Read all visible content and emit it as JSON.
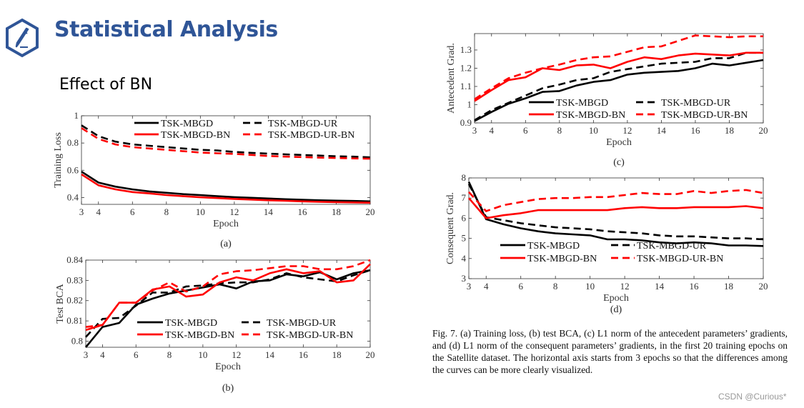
{
  "header": {
    "title": "Statistical Analysis",
    "subtitle": "Effect of BN",
    "icon": "pencil-hexagon-icon",
    "accent": "#2f5597"
  },
  "caption": "Fig. 7.  (a) Training loss, (b) test BCA, (c) L1 norm of the antecedent parameters’ gradients, and (d) L1 norm of the consequent parameters’ gradients, in the first 20 training epochs on the Satellite dataset. The horizontal axis starts from 3 epochs so that the differences among the curves can be more clearly visualized.",
  "watermark": "CSDN @Curious*",
  "chart_data": [
    {
      "type": "line",
      "panel": "(a)",
      "xlabel": "Epoch",
      "ylabel": "Training Loss",
      "xlim": [
        3,
        20
      ],
      "ylim": [
        0.35,
        1
      ],
      "xticks": [
        3,
        4,
        6,
        8,
        10,
        12,
        14,
        16,
        18,
        20
      ],
      "yticks": [
        0.4,
        0.6,
        0.8,
        1
      ],
      "ytick_labels": [
        "0.4",
        "0.6",
        "0.8",
        "1"
      ],
      "legend": "top",
      "x": [
        3,
        4,
        5,
        6,
        7,
        8,
        9,
        10,
        11,
        12,
        13,
        14,
        15,
        16,
        17,
        18,
        19,
        20
      ],
      "series": [
        {
          "name": "TSK-MBGD",
          "color": "#000000",
          "dash": false,
          "values": [
            0.59,
            0.51,
            0.48,
            0.46,
            0.445,
            0.435,
            0.425,
            0.418,
            0.41,
            0.403,
            0.398,
            0.393,
            0.388,
            0.384,
            0.38,
            0.377,
            0.375,
            0.372
          ]
        },
        {
          "name": "TSK-MBGD-UR",
          "color": "#000000",
          "dash": true,
          "values": [
            0.93,
            0.85,
            0.81,
            0.79,
            0.78,
            0.77,
            0.76,
            0.75,
            0.745,
            0.735,
            0.728,
            0.722,
            0.717,
            0.712,
            0.708,
            0.703,
            0.7,
            0.695
          ]
        },
        {
          "name": "TSK-MBGD-BN",
          "color": "#ff0000",
          "dash": false,
          "values": [
            0.57,
            0.49,
            0.46,
            0.44,
            0.43,
            0.418,
            0.41,
            0.402,
            0.396,
            0.39,
            0.385,
            0.38,
            0.376,
            0.372,
            0.369,
            0.366,
            0.364,
            0.362
          ]
        },
        {
          "name": "TSK-MBGD-UR-BN",
          "color": "#ff0000",
          "dash": true,
          "values": [
            0.91,
            0.83,
            0.79,
            0.77,
            0.76,
            0.75,
            0.74,
            0.73,
            0.725,
            0.72,
            0.713,
            0.705,
            0.7,
            0.697,
            0.693,
            0.69,
            0.687,
            0.685
          ]
        }
      ]
    },
    {
      "type": "line",
      "panel": "(b)",
      "xlabel": "Epoch",
      "ylabel": "Test BCA",
      "xlim": [
        3,
        20
      ],
      "ylim": [
        0.797,
        0.84
      ],
      "xticks": [
        3,
        4,
        6,
        8,
        10,
        12,
        14,
        16,
        18,
        20
      ],
      "yticks": [
        0.8,
        0.81,
        0.82,
        0.83,
        0.84
      ],
      "ytick_labels": [
        "0.8",
        "0.81",
        "0.82",
        "0.83",
        "0.84"
      ],
      "legend": "bottom",
      "x": [
        3,
        4,
        5,
        6,
        7,
        8,
        9,
        10,
        11,
        12,
        13,
        14,
        15,
        16,
        17,
        18,
        19,
        20
      ],
      "series": [
        {
          "name": "TSK-MBGD",
          "color": "#000000",
          "dash": false,
          "values": [
            0.797,
            0.807,
            0.809,
            0.818,
            0.821,
            0.8235,
            0.825,
            0.8265,
            0.828,
            0.826,
            0.8295,
            0.83,
            0.833,
            0.832,
            0.834,
            0.8305,
            0.8335,
            0.835
          ]
        },
        {
          "name": "TSK-MBGD-UR",
          "color": "#000000",
          "dash": true,
          "values": [
            0.802,
            0.811,
            0.8115,
            0.8175,
            0.824,
            0.824,
            0.827,
            0.8275,
            0.8285,
            0.829,
            0.829,
            0.8305,
            0.8335,
            0.8315,
            0.8305,
            0.8295,
            0.8325,
            0.835
          ]
        },
        {
          "name": "TSK-MBGD-BN",
          "color": "#ff0000",
          "dash": false,
          "values": [
            0.8055,
            0.808,
            0.819,
            0.819,
            0.8255,
            0.827,
            0.822,
            0.823,
            0.829,
            0.8315,
            0.83,
            0.8335,
            0.8355,
            0.8335,
            0.8345,
            0.829,
            0.83,
            0.838
          ]
        },
        {
          "name": "TSK-MBGD-UR-BN",
          "color": "#ff0000",
          "dash": true,
          "values": [
            0.807,
            0.808,
            0.819,
            0.819,
            0.825,
            0.829,
            0.8245,
            0.827,
            0.833,
            0.8345,
            0.835,
            0.836,
            0.837,
            0.837,
            0.8355,
            0.8355,
            0.837,
            0.84
          ]
        }
      ]
    },
    {
      "type": "line",
      "panel": "(c)",
      "xlabel": "Epoch",
      "ylabel": "Antecedent Grad.",
      "xlim": [
        3,
        20
      ],
      "ylim": [
        0.9,
        1.39
      ],
      "xticks": [
        3,
        4,
        6,
        8,
        10,
        12,
        14,
        16,
        18,
        20
      ],
      "yticks": [
        0.9,
        1,
        1.1,
        1.2,
        1.3
      ],
      "ytick_labels": [
        "0.9",
        "1",
        "1.1",
        "1.2",
        "1.3"
      ],
      "legend": "bottom",
      "x": [
        3,
        4,
        5,
        6,
        7,
        8,
        9,
        10,
        11,
        12,
        13,
        14,
        15,
        16,
        17,
        18,
        19,
        20
      ],
      "series": [
        {
          "name": "TSK-MBGD",
          "color": "#000000",
          "dash": false,
          "values": [
            0.91,
            0.96,
            1.005,
            1.035,
            1.07,
            1.075,
            1.105,
            1.125,
            1.135,
            1.165,
            1.175,
            1.18,
            1.185,
            1.2,
            1.225,
            1.215,
            1.23,
            1.245
          ]
        },
        {
          "name": "TSK-MBGD-UR",
          "color": "#000000",
          "dash": true,
          "values": [
            0.915,
            0.97,
            1.01,
            1.05,
            1.09,
            1.11,
            1.135,
            1.145,
            1.18,
            1.195,
            1.21,
            1.225,
            1.23,
            1.235,
            1.255,
            1.255,
            1.285,
            1.285
          ]
        },
        {
          "name": "TSK-MBGD-BN",
          "color": "#ff0000",
          "dash": false,
          "values": [
            1.02,
            1.08,
            1.135,
            1.15,
            1.2,
            1.19,
            1.215,
            1.22,
            1.2,
            1.235,
            1.26,
            1.25,
            1.27,
            1.28,
            1.275,
            1.27,
            1.285,
            1.285
          ]
        },
        {
          "name": "TSK-MBGD-UR-BN",
          "color": "#ff0000",
          "dash": true,
          "values": [
            1.03,
            1.09,
            1.145,
            1.175,
            1.2,
            1.22,
            1.245,
            1.26,
            1.265,
            1.29,
            1.315,
            1.32,
            1.35,
            1.38,
            1.375,
            1.37,
            1.375,
            1.375
          ]
        }
      ]
    },
    {
      "type": "line",
      "panel": "(d)",
      "xlabel": "Epoch",
      "ylabel": "Consequent Grad.",
      "xlim": [
        3,
        20
      ],
      "ylim": [
        3,
        8
      ],
      "xticks": [
        3,
        4,
        6,
        8,
        10,
        12,
        14,
        16,
        18,
        20
      ],
      "yticks": [
        3,
        4,
        5,
        6,
        7,
        8
      ],
      "ytick_labels": [
        "3",
        "4",
        "5",
        "6",
        "7",
        "8"
      ],
      "legend": "bottom",
      "x": [
        3,
        4,
        5,
        6,
        7,
        8,
        9,
        10,
        11,
        12,
        13,
        14,
        15,
        16,
        17,
        18,
        19,
        20
      ],
      "series": [
        {
          "name": "TSK-MBGD",
          "color": "#000000",
          "dash": false,
          "values": [
            7.8,
            5.95,
            5.7,
            5.5,
            5.35,
            5.25,
            5.2,
            5.15,
            4.95,
            4.95,
            4.9,
            4.8,
            4.75,
            4.8,
            4.75,
            4.65,
            4.65,
            4.62
          ]
        },
        {
          "name": "TSK-MBGD-UR",
          "color": "#000000",
          "dash": true,
          "values": [
            7.7,
            6.05,
            5.9,
            5.75,
            5.65,
            5.55,
            5.5,
            5.45,
            5.35,
            5.3,
            5.25,
            5.15,
            5.1,
            5.1,
            5.05,
            5.0,
            5.0,
            4.95
          ]
        },
        {
          "name": "TSK-MBGD-BN",
          "color": "#ff0000",
          "dash": false,
          "values": [
            7.0,
            6.0,
            6.15,
            6.25,
            6.4,
            6.4,
            6.4,
            6.4,
            6.4,
            6.5,
            6.55,
            6.5,
            6.5,
            6.55,
            6.55,
            6.55,
            6.6,
            6.5
          ]
        },
        {
          "name": "TSK-MBGD-UR-BN",
          "color": "#ff0000",
          "dash": true,
          "values": [
            7.3,
            6.35,
            6.65,
            6.8,
            6.95,
            7.0,
            7.0,
            7.05,
            7.05,
            7.15,
            7.25,
            7.2,
            7.2,
            7.35,
            7.25,
            7.35,
            7.4,
            7.25
          ]
        }
      ]
    }
  ]
}
